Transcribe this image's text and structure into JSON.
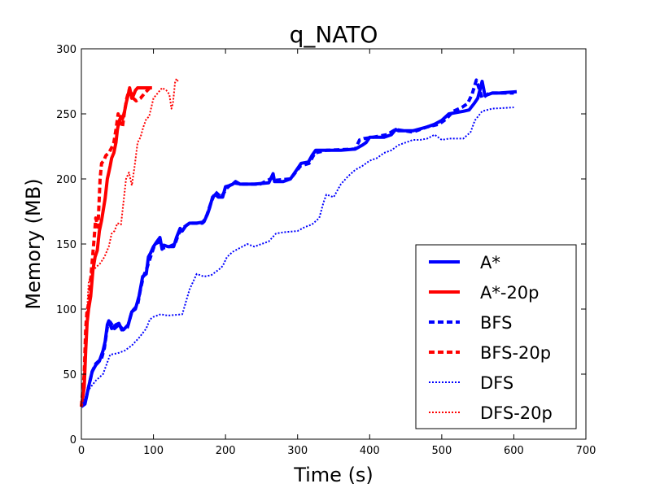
{
  "chart_data": {
    "type": "line",
    "title": "q_NATO",
    "xlabel": "Time (s)",
    "ylabel": "Memory (MB)",
    "xlim": [
      0,
      700
    ],
    "ylim": [
      0,
      300
    ],
    "xticks": [
      0,
      100,
      200,
      300,
      400,
      500,
      600,
      700
    ],
    "yticks": [
      0,
      50,
      100,
      150,
      200,
      250,
      300
    ],
    "grid": false,
    "legend": "lower-right",
    "series": [
      {
        "name": "A*",
        "color": "#0000ff",
        "style": "solid",
        "width": "thick",
        "points": [
          [
            0,
            25
          ],
          [
            5,
            27
          ],
          [
            8,
            35
          ],
          [
            12,
            45
          ],
          [
            15,
            52
          ],
          [
            20,
            57
          ],
          [
            25,
            60
          ],
          [
            30,
            68
          ],
          [
            33,
            75
          ],
          [
            36,
            88
          ],
          [
            38,
            91
          ],
          [
            42,
            85
          ],
          [
            48,
            88
          ],
          [
            52,
            89
          ],
          [
            56,
            84
          ],
          [
            60,
            85
          ],
          [
            65,
            88
          ],
          [
            70,
            98
          ],
          [
            75,
            100
          ],
          [
            80,
            110
          ],
          [
            85,
            125
          ],
          [
            90,
            127
          ],
          [
            93,
            140
          ],
          [
            96,
            143
          ],
          [
            100,
            148
          ],
          [
            105,
            152
          ],
          [
            109,
            155
          ],
          [
            112,
            146
          ],
          [
            115,
            149
          ],
          [
            120,
            148
          ],
          [
            128,
            148
          ],
          [
            132,
            155
          ],
          [
            137,
            162
          ],
          [
            140,
            160
          ],
          [
            145,
            164
          ],
          [
            150,
            166
          ],
          [
            160,
            166
          ],
          [
            170,
            167
          ],
          [
            175,
            173
          ],
          [
            178,
            178
          ],
          [
            182,
            186
          ],
          [
            186,
            188
          ],
          [
            190,
            186
          ],
          [
            196,
            186
          ],
          [
            200,
            194
          ],
          [
            206,
            195
          ],
          [
            210,
            196
          ],
          [
            214,
            198
          ],
          [
            220,
            196
          ],
          [
            240,
            196
          ],
          [
            260,
            197
          ],
          [
            266,
            204
          ],
          [
            268,
            198
          ],
          [
            280,
            198
          ],
          [
            290,
            200
          ],
          [
            300,
            208
          ],
          [
            305,
            212
          ],
          [
            315,
            213
          ],
          [
            320,
            218
          ],
          [
            325,
            222
          ],
          [
            340,
            222
          ],
          [
            360,
            222
          ],
          [
            380,
            223
          ],
          [
            390,
            226
          ],
          [
            395,
            228
          ],
          [
            400,
            232
          ],
          [
            420,
            232
          ],
          [
            430,
            234
          ],
          [
            436,
            238
          ],
          [
            440,
            237
          ],
          [
            460,
            237
          ],
          [
            480,
            240
          ],
          [
            490,
            242
          ],
          [
            500,
            245
          ],
          [
            510,
            250
          ],
          [
            530,
            252
          ],
          [
            538,
            253
          ],
          [
            545,
            258
          ],
          [
            550,
            262
          ],
          [
            556,
            275
          ],
          [
            560,
            264
          ],
          [
            570,
            266
          ],
          [
            580,
            266
          ],
          [
            604,
            267
          ]
        ]
      },
      {
        "name": "A*-20p",
        "color": "#ff0000",
        "style": "solid",
        "width": "thick",
        "points": [
          [
            0,
            25
          ],
          [
            4,
            40
          ],
          [
            6,
            68
          ],
          [
            8,
            90
          ],
          [
            10,
            100
          ],
          [
            13,
            110
          ],
          [
            16,
            130
          ],
          [
            19,
            140
          ],
          [
            22,
            145
          ],
          [
            25,
            160
          ],
          [
            28,
            168
          ],
          [
            30,
            175
          ],
          [
            33,
            185
          ],
          [
            36,
            200
          ],
          [
            38,
            205
          ],
          [
            40,
            210
          ],
          [
            42,
            216
          ],
          [
            45,
            220
          ],
          [
            48,
            228
          ],
          [
            50,
            238
          ],
          [
            52,
            244
          ],
          [
            55,
            248
          ],
          [
            57,
            246
          ],
          [
            60,
            252
          ],
          [
            62,
            258
          ],
          [
            65,
            265
          ],
          [
            67,
            270
          ],
          [
            70,
            262
          ],
          [
            72,
            264
          ],
          [
            75,
            268
          ],
          [
            78,
            270
          ],
          [
            90,
            270
          ],
          [
            98,
            270
          ]
        ]
      },
      {
        "name": "BFS",
        "color": "#0000ff",
        "style": "dashed",
        "width": "thick",
        "points": [
          [
            0,
            25
          ],
          [
            6,
            30
          ],
          [
            10,
            40
          ],
          [
            15,
            52
          ],
          [
            20,
            58
          ],
          [
            28,
            62
          ],
          [
            32,
            70
          ],
          [
            36,
            86
          ],
          [
            40,
            90
          ],
          [
            46,
            85
          ],
          [
            52,
            88
          ],
          [
            58,
            84
          ],
          [
            64,
            86
          ],
          [
            70,
            98
          ],
          [
            78,
            103
          ],
          [
            82,
            115
          ],
          [
            86,
            125
          ],
          [
            90,
            130
          ],
          [
            96,
            140
          ],
          [
            102,
            150
          ],
          [
            110,
            152
          ],
          [
            114,
            147
          ],
          [
            122,
            148
          ],
          [
            130,
            150
          ],
          [
            135,
            158
          ],
          [
            140,
            162
          ],
          [
            150,
            166
          ],
          [
            168,
            166
          ],
          [
            174,
            172
          ],
          [
            180,
            182
          ],
          [
            186,
            190
          ],
          [
            194,
            186
          ],
          [
            202,
            193
          ],
          [
            210,
            197
          ],
          [
            222,
            196
          ],
          [
            248,
            196
          ],
          [
            266,
            201
          ],
          [
            270,
            199
          ],
          [
            290,
            200
          ],
          [
            304,
            210
          ],
          [
            316,
            212
          ],
          [
            324,
            220
          ],
          [
            340,
            222
          ],
          [
            380,
            223
          ],
          [
            386,
            230
          ],
          [
            392,
            231
          ],
          [
            404,
            232
          ],
          [
            424,
            234
          ],
          [
            436,
            238
          ],
          [
            460,
            236
          ],
          [
            480,
            240
          ],
          [
            496,
            242
          ],
          [
            506,
            246
          ],
          [
            516,
            252
          ],
          [
            528,
            255
          ],
          [
            536,
            258
          ],
          [
            542,
            265
          ],
          [
            548,
            276
          ],
          [
            556,
            262
          ],
          [
            566,
            266
          ],
          [
            600,
            266
          ]
        ]
      },
      {
        "name": "BFS-20p",
        "color": "#ff0000",
        "style": "dashed",
        "width": "thick",
        "points": [
          [
            0,
            25
          ],
          [
            4,
            50
          ],
          [
            6,
            85
          ],
          [
            8,
            100
          ],
          [
            10,
            103
          ],
          [
            14,
            130
          ],
          [
            17,
            150
          ],
          [
            20,
            170
          ],
          [
            23,
            163
          ],
          [
            26,
            200
          ],
          [
            28,
            212
          ],
          [
            31,
            214
          ],
          [
            34,
            218
          ],
          [
            38,
            220
          ],
          [
            42,
            224
          ],
          [
            45,
            228
          ],
          [
            48,
            238
          ],
          [
            51,
            250
          ],
          [
            54,
            242
          ],
          [
            57,
            240
          ],
          [
            60,
            252
          ],
          [
            63,
            262
          ],
          [
            66,
            268
          ],
          [
            69,
            266
          ],
          [
            72,
            262
          ],
          [
            76,
            260
          ],
          [
            82,
            262
          ],
          [
            88,
            266
          ],
          [
            95,
            270
          ]
        ]
      },
      {
        "name": "DFS",
        "color": "#0000ff",
        "style": "dotted",
        "width": "thin",
        "points": [
          [
            0,
            25
          ],
          [
            10,
            38
          ],
          [
            20,
            45
          ],
          [
            30,
            50
          ],
          [
            40,
            65
          ],
          [
            50,
            66
          ],
          [
            60,
            68
          ],
          [
            70,
            72
          ],
          [
            80,
            78
          ],
          [
            90,
            85
          ],
          [
            95,
            92
          ],
          [
            100,
            94
          ],
          [
            110,
            96
          ],
          [
            120,
            95
          ],
          [
            140,
            96
          ],
          [
            150,
            115
          ],
          [
            160,
            127
          ],
          [
            170,
            125
          ],
          [
            180,
            126
          ],
          [
            190,
            130
          ],
          [
            196,
            133
          ],
          [
            202,
            140
          ],
          [
            210,
            144
          ],
          [
            220,
            147
          ],
          [
            230,
            150
          ],
          [
            240,
            148
          ],
          [
            250,
            150
          ],
          [
            260,
            152
          ],
          [
            270,
            158
          ],
          [
            280,
            159
          ],
          [
            300,
            160
          ],
          [
            310,
            163
          ],
          [
            320,
            165
          ],
          [
            330,
            170
          ],
          [
            336,
            182
          ],
          [
            340,
            188
          ],
          [
            350,
            186
          ],
          [
            360,
            196
          ],
          [
            370,
            202
          ],
          [
            380,
            207
          ],
          [
            390,
            210
          ],
          [
            400,
            214
          ],
          [
            410,
            216
          ],
          [
            420,
            220
          ],
          [
            430,
            222
          ],
          [
            440,
            226
          ],
          [
            450,
            228
          ],
          [
            460,
            230
          ],
          [
            470,
            230
          ],
          [
            480,
            231
          ],
          [
            490,
            234
          ],
          [
            500,
            230
          ],
          [
            510,
            231
          ],
          [
            530,
            231
          ],
          [
            540,
            236
          ],
          [
            546,
            245
          ],
          [
            556,
            252
          ],
          [
            570,
            254
          ],
          [
            600,
            255
          ]
        ]
      },
      {
        "name": "DFS-20p",
        "color": "#ff0000",
        "style": "dotted",
        "width": "thin",
        "points": [
          [
            0,
            25
          ],
          [
            5,
            60
          ],
          [
            8,
            100
          ],
          [
            10,
            120
          ],
          [
            14,
            128
          ],
          [
            20,
            132
          ],
          [
            26,
            135
          ],
          [
            32,
            140
          ],
          [
            38,
            148
          ],
          [
            42,
            158
          ],
          [
            46,
            160
          ],
          [
            50,
            166
          ],
          [
            55,
            165
          ],
          [
            62,
            200
          ],
          [
            66,
            205
          ],
          [
            70,
            195
          ],
          [
            74,
            210
          ],
          [
            78,
            228
          ],
          [
            82,
            232
          ],
          [
            86,
            240
          ],
          [
            90,
            246
          ],
          [
            94,
            248
          ],
          [
            100,
            262
          ],
          [
            106,
            266
          ],
          [
            112,
            270
          ],
          [
            118,
            268
          ],
          [
            122,
            265
          ],
          [
            125,
            254
          ],
          [
            127,
            258
          ],
          [
            130,
            274
          ],
          [
            132,
            277
          ],
          [
            134,
            275
          ]
        ]
      }
    ]
  }
}
